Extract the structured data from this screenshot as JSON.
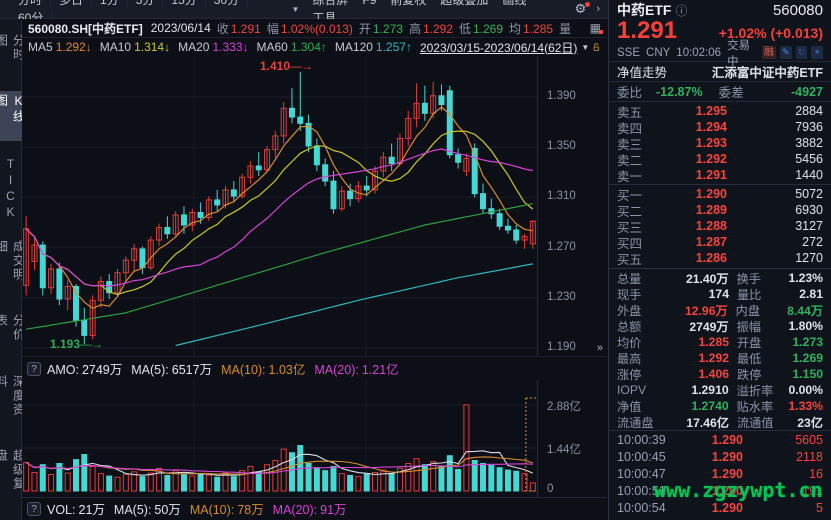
{
  "toolbar": {
    "periods": [
      "分时",
      "多日",
      "1分",
      "5分",
      "15分",
      "30分",
      "60分"
    ],
    "caret": "▼",
    "tools": [
      "综合屏",
      "F9",
      "前复权",
      "超级叠加",
      "画线",
      "工具"
    ],
    "gear": "⚙",
    "chevron": "›"
  },
  "info_row": {
    "symbol": "560080.SH[中药ETF]",
    "date": "2023/06/14",
    "fields": [
      {
        "label": "收",
        "value": "1.291",
        "cls": "red"
      },
      {
        "label": "幅",
        "value": "1.02%(0.013)",
        "cls": "red"
      },
      {
        "label": "开",
        "value": "1.273",
        "cls": "green"
      },
      {
        "label": "高",
        "value": "1.292",
        "cls": "red"
      },
      {
        "label": "低",
        "value": "1.269",
        "cls": "green"
      },
      {
        "label": "均",
        "value": "1.285",
        "cls": "red"
      }
    ],
    "vol_label": "量",
    "grid_icon": "▦"
  },
  "ma_row": {
    "items": [
      {
        "label": "MA5",
        "value": "1.292",
        "arrow": "↓",
        "cls": "orange"
      },
      {
        "label": "MA10",
        "value": "1.314",
        "arrow": "↓",
        "cls": "yellow"
      },
      {
        "label": "MA20",
        "value": "1.333",
        "arrow": "↓",
        "cls": "magenta"
      },
      {
        "label": "MA60",
        "value": "1.304",
        "arrow": "↑",
        "cls": "green2"
      },
      {
        "label": "MA120",
        "value": "1.257",
        "arrow": "↑",
        "cls": "cyan2"
      }
    ],
    "range": "2023/03/15-2023/06/14(62日)",
    "range_caret": "▼"
  },
  "sidebar": {
    "items": [
      {
        "label": "分时图",
        "active": false
      },
      {
        "label": "K线图",
        "active": true
      },
      {
        "label": "TICK",
        "active": false
      },
      {
        "label": "成交明细",
        "active": false
      },
      {
        "label": "分价表",
        "active": false
      },
      {
        "label": "深度资料",
        "active": false
      },
      {
        "label": "超级复盘",
        "active": false
      }
    ]
  },
  "chart_data": {
    "type": "candlestick",
    "title": "560080.SH 中药ETF 日K",
    "date_range": "2023/03/15-2023/06/14",
    "bars": 62,
    "y_ticks": [
      "1.390",
      "1.350",
      "1.310",
      "1.270",
      "1.230",
      "1.190"
    ],
    "y_tick_prices": [
      1.39,
      1.35,
      1.31,
      1.27,
      1.23,
      1.19
    ],
    "annotations": {
      "high": "1.410",
      "low": "1.193"
    },
    "expand_glyph": "»",
    "colors": {
      "up": "#e23c3a",
      "down": "#44d7d3",
      "ma5": "#d98b2f",
      "ma10": "#c9c92a",
      "ma20": "#d544d5",
      "ma60": "#2e9e44",
      "ma120": "#31b8b8",
      "grid": "#161c28"
    },
    "candles": [
      [
        1.24,
        1.295,
        1.232,
        1.285
      ],
      [
        1.259,
        1.278,
        1.252,
        1.272
      ],
      [
        1.272,
        1.275,
        1.232,
        1.238
      ],
      [
        1.238,
        1.257,
        1.233,
        1.253
      ],
      [
        1.253,
        1.258,
        1.224,
        1.229
      ],
      [
        1.229,
        1.244,
        1.22,
        1.239
      ],
      [
        1.239,
        1.241,
        1.207,
        1.212
      ],
      [
        1.212,
        1.222,
        1.193,
        1.2
      ],
      [
        1.2,
        1.232,
        1.197,
        1.228
      ],
      [
        1.228,
        1.247,
        1.222,
        1.243
      ],
      [
        1.243,
        1.249,
        1.229,
        1.234
      ],
      [
        1.234,
        1.253,
        1.231,
        1.25
      ],
      [
        1.25,
        1.263,
        1.243,
        1.26
      ],
      [
        1.26,
        1.273,
        1.251,
        1.269
      ],
      [
        1.269,
        1.271,
        1.249,
        1.254
      ],
      [
        1.254,
        1.279,
        1.252,
        1.276
      ],
      [
        1.276,
        1.289,
        1.271,
        1.286
      ],
      [
        1.286,
        1.295,
        1.277,
        1.281
      ],
      [
        1.281,
        1.299,
        1.279,
        1.296
      ],
      [
        1.296,
        1.303,
        1.281,
        1.288
      ],
      [
        1.288,
        1.301,
        1.283,
        1.298
      ],
      [
        1.298,
        1.306,
        1.289,
        1.294
      ],
      [
        1.294,
        1.311,
        1.291,
        1.308
      ],
      [
        1.308,
        1.316,
        1.299,
        1.304
      ],
      [
        1.304,
        1.319,
        1.301,
        1.316
      ],
      [
        1.316,
        1.323,
        1.306,
        1.311
      ],
      [
        1.311,
        1.329,
        1.309,
        1.326
      ],
      [
        1.326,
        1.339,
        1.321,
        1.335
      ],
      [
        1.335,
        1.346,
        1.327,
        1.332
      ],
      [
        1.332,
        1.351,
        1.33,
        1.348
      ],
      [
        1.348,
        1.363,
        1.341,
        1.359
      ],
      [
        1.359,
        1.386,
        1.353,
        1.381
      ],
      [
        1.381,
        1.397,
        1.369,
        1.374
      ],
      [
        1.374,
        1.41,
        1.363,
        1.369
      ],
      [
        1.369,
        1.376,
        1.346,
        1.351
      ],
      [
        1.351,
        1.357,
        1.331,
        1.336
      ],
      [
        1.336,
        1.341,
        1.319,
        1.323
      ],
      [
        1.323,
        1.331,
        1.297,
        1.301
      ],
      [
        1.301,
        1.319,
        1.299,
        1.315
      ],
      [
        1.315,
        1.321,
        1.303,
        1.309
      ],
      [
        1.309,
        1.323,
        1.306,
        1.319
      ],
      [
        1.319,
        1.327,
        1.311,
        1.316
      ],
      [
        1.316,
        1.335,
        1.313,
        1.331
      ],
      [
        1.331,
        1.346,
        1.326,
        1.342
      ],
      [
        1.342,
        1.353,
        1.331,
        1.337
      ],
      [
        1.337,
        1.361,
        1.335,
        1.357
      ],
      [
        1.357,
        1.379,
        1.351,
        1.373
      ],
      [
        1.373,
        1.401,
        1.366,
        1.385
      ],
      [
        1.385,
        1.399,
        1.371,
        1.377
      ],
      [
        1.377,
        1.402,
        1.373,
        1.391
      ],
      [
        1.391,
        1.4,
        1.379,
        1.384
      ],
      [
        1.395,
        1.399,
        1.341,
        1.344
      ],
      [
        1.344,
        1.349,
        1.333,
        1.338
      ],
      [
        1.331,
        1.345,
        1.327,
        1.341
      ],
      [
        1.349,
        1.353,
        1.31,
        1.313
      ],
      [
        1.313,
        1.321,
        1.297,
        1.301
      ],
      [
        1.301,
        1.309,
        1.293,
        1.297
      ],
      [
        1.297,
        1.301,
        1.284,
        1.287
      ],
      [
        1.287,
        1.293,
        1.281,
        1.284
      ],
      [
        1.284,
        1.288,
        1.273,
        1.276
      ],
      [
        1.276,
        1.281,
        1.269,
        1.279
      ],
      [
        1.273,
        1.292,
        1.269,
        1.291
      ]
    ],
    "ma60_pts": [
      [
        0,
        1.205
      ],
      [
        12,
        1.218
      ],
      [
        24,
        1.242
      ],
      [
        36,
        1.266
      ],
      [
        48,
        1.288
      ],
      [
        61,
        1.305
      ]
    ],
    "ma120_pts": [
      [
        18,
        1.192
      ],
      [
        28,
        1.208
      ],
      [
        40,
        1.228
      ],
      [
        52,
        1.246
      ],
      [
        61,
        1.257
      ]
    ],
    "volume_unit": "亿",
    "volume_y_ticks": [
      "2.88亿",
      "1.44亿",
      "0"
    ],
    "volumes": [
      0.95,
      0.62,
      0.88,
      0.55,
      0.92,
      0.6,
      1.05,
      1.22,
      0.82,
      0.58,
      0.5,
      0.46,
      0.56,
      0.64,
      0.48,
      0.6,
      0.76,
      0.52,
      0.68,
      0.56,
      0.5,
      0.58,
      0.53,
      0.46,
      0.6,
      0.48,
      0.68,
      0.82,
      0.64,
      0.88,
      1.02,
      1.4,
      1.28,
      1.52,
      0.92,
      0.78,
      0.68,
      0.82,
      0.58,
      0.52,
      0.48,
      0.56,
      0.62,
      0.7,
      0.58,
      0.76,
      0.92,
      1.08,
      0.88,
      0.98,
      0.82,
      1.18,
      0.72,
      2.88,
      1.02,
      0.92,
      0.86,
      0.78,
      0.7,
      0.66,
      0.58,
      0.27
    ]
  },
  "amo_row": {
    "help": "?",
    "items": [
      {
        "label": "AMO:",
        "value": "2749万",
        "cls": "white"
      },
      {
        "label": "MA(5):",
        "value": "6517万",
        "cls": "white"
      },
      {
        "label": "MA(10):",
        "value": "1.03亿",
        "cls": "orange"
      },
      {
        "label": "MA(20):",
        "value": "1.21亿",
        "cls": "magenta"
      }
    ]
  },
  "vol_row": {
    "help": "?",
    "items": [
      {
        "label": "VOL:",
        "value": "21万",
        "cls": "white"
      },
      {
        "label": "MA(5):",
        "value": "50万",
        "cls": "white"
      },
      {
        "label": "MA(10):",
        "value": "78万",
        "cls": "orange"
      },
      {
        "label": "MA(20):",
        "value": "91万",
        "cls": "magenta"
      }
    ]
  },
  "panel": {
    "title": "中药ETF",
    "info_icon": "ⓘ",
    "code": "560080",
    "price": "1.291",
    "change": "+1.02% (+0.013)",
    "exchange": "SSE",
    "currency": "CNY",
    "time": "10:02:06",
    "status": "交易中",
    "margin_badge": "融",
    "icons": [
      "✎",
      "↻",
      "+"
    ],
    "fund_link": "净值走势",
    "fund_name": "汇添富中证中药ETF",
    "weibi_label": "委比",
    "weibi_value": "-12.87%",
    "weicha_label": "委差",
    "weicha_value": "-4927",
    "asks": [
      {
        "label": "卖五",
        "price": "1.295",
        "qty": "2884"
      },
      {
        "label": "卖四",
        "price": "1.294",
        "qty": "7936"
      },
      {
        "label": "卖三",
        "price": "1.293",
        "qty": "3882"
      },
      {
        "label": "卖二",
        "price": "1.292",
        "qty": "5456"
      },
      {
        "label": "卖一",
        "price": "1.291",
        "qty": "1440"
      }
    ],
    "bids": [
      {
        "label": "买一",
        "price": "1.290",
        "qty": "5072"
      },
      {
        "label": "买二",
        "price": "1.289",
        "qty": "6930"
      },
      {
        "label": "买三",
        "price": "1.288",
        "qty": "3127"
      },
      {
        "label": "买四",
        "price": "1.287",
        "qty": "272"
      },
      {
        "label": "买五",
        "price": "1.286",
        "qty": "1270"
      }
    ],
    "stats": [
      {
        "l1": "总量",
        "v1": "21.40万",
        "c1": "w",
        "l2": "换手",
        "v2": "1.23%",
        "c2": "w"
      },
      {
        "l1": "现手",
        "v1": "174",
        "c1": "w",
        "l2": "量比",
        "v2": "2.81",
        "c2": "w"
      },
      {
        "l1": "外盘",
        "v1": "12.96万",
        "c1": "r",
        "l2": "内盘",
        "v2": "8.44万",
        "c2": "g"
      },
      {
        "l1": "总额",
        "v1": "2749万",
        "c1": "w",
        "l2": "振幅",
        "v2": "1.80%",
        "c2": "w"
      },
      {
        "l1": "均价",
        "v1": "1.285",
        "c1": "r",
        "l2": "开盘",
        "v2": "1.273",
        "c2": "g"
      },
      {
        "l1": "最高",
        "v1": "1.292",
        "c1": "r",
        "l2": "最低",
        "v2": "1.269",
        "c2": "g"
      },
      {
        "l1": "涨停",
        "v1": "1.406",
        "c1": "r",
        "l2": "跌停",
        "v2": "1.150",
        "c2": "g"
      },
      {
        "l1": "IOPV",
        "v1": "1.2910",
        "c1": "w",
        "l2": "溢折率",
        "v2": "0.00%",
        "c2": "w"
      },
      {
        "l1": "净值",
        "v1": "1.2740",
        "c1": "g",
        "l2": "贴水率",
        "v2": "1.33%",
        "c2": "r"
      },
      {
        "l1": "流通盘",
        "v1": "17.46亿",
        "c1": "w",
        "l2": "流通值",
        "v2": "23亿",
        "c2": "w"
      }
    ],
    "tick_list": [
      {
        "time": "10:00:39",
        "price": "1.290",
        "qty": "5605",
        "dir": ""
      },
      {
        "time": "10:00:45",
        "price": "1.290",
        "qty": "2118",
        "dir": ""
      },
      {
        "time": "10:00:47",
        "price": "1.290",
        "qty": "16",
        "dir": ""
      },
      {
        "time": "10:00:51",
        "price": "1.290",
        "qty": "191",
        "dir": ""
      },
      {
        "time": "10:00:54",
        "price": "1.290",
        "qty": "5",
        "dir": ""
      },
      {
        "time": "10:00:57",
        "price": "1.288",
        "qty": "10",
        "dir": "↓"
      }
    ]
  },
  "watermark": "www.zgzywpt.cn"
}
